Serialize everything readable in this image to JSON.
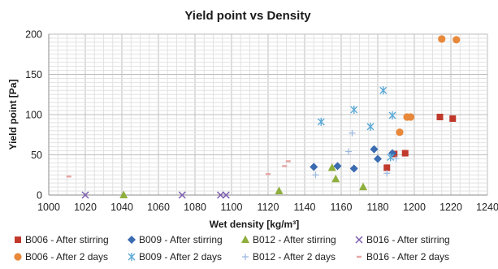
{
  "chart_data": {
    "type": "scatter",
    "title": "Yield point vs Density",
    "xlabel": "Wet density [kg/m³]",
    "ylabel": "Yield point [Pa]",
    "xlim": [
      1000,
      1240
    ],
    "ylim": [
      0,
      200
    ],
    "x_ticks": [
      "1000",
      "1020",
      "1040",
      "1060",
      "1080",
      "1100",
      "1120",
      "1140",
      "1160",
      "1180",
      "1200",
      "1220",
      "1240"
    ],
    "y_ticks": [
      "0",
      "50",
      "100",
      "150",
      "200"
    ],
    "grid": true,
    "legend_position": "bottom",
    "series": [
      {
        "name": "B006 - After stirring",
        "marker": "square",
        "color": "#c0392b",
        "points": [
          [
            1185,
            34
          ],
          [
            1189,
            51
          ],
          [
            1195,
            52
          ],
          [
            1214,
            97
          ],
          [
            1221,
            95
          ]
        ]
      },
      {
        "name": "B009 - After stirring",
        "marker": "diamond",
        "color": "#3b6bb0",
        "points": [
          [
            1145,
            35
          ],
          [
            1158,
            36
          ],
          [
            1167,
            33
          ],
          [
            1178,
            57
          ],
          [
            1180,
            45
          ],
          [
            1188,
            52
          ]
        ]
      },
      {
        "name": "B012 - After stirring",
        "marker": "triangle",
        "color": "#8faf3c",
        "points": [
          [
            1041,
            0
          ],
          [
            1126,
            5
          ],
          [
            1155,
            34
          ],
          [
            1157,
            20
          ],
          [
            1172,
            10
          ]
        ]
      },
      {
        "name": "B016 - After stirring",
        "marker": "x",
        "color": "#7c5cb0",
        "points": [
          [
            1020,
            0
          ],
          [
            1073,
            0
          ],
          [
            1094,
            0
          ],
          [
            1097,
            0
          ]
        ]
      },
      {
        "name": "B006 - After 2 days",
        "marker": "circle",
        "color": "#e8883a",
        "points": [
          [
            1192,
            78
          ],
          [
            1196,
            97
          ],
          [
            1198,
            97
          ],
          [
            1215,
            194
          ],
          [
            1223,
            193
          ]
        ]
      },
      {
        "name": "B009 - After 2 days",
        "marker": "star",
        "color": "#5aa9d6",
        "points": [
          [
            1149,
            91
          ],
          [
            1167,
            106
          ],
          [
            1176,
            85
          ],
          [
            1183,
            130
          ],
          [
            1188,
            99
          ],
          [
            1187,
            47
          ]
        ]
      },
      {
        "name": "B012 - After 2 days",
        "marker": "plus",
        "color": "#9ab8e0",
        "points": [
          [
            1146,
            25
          ],
          [
            1164,
            54
          ],
          [
            1166,
            77
          ],
          [
            1185,
            27
          ],
          [
            1190,
            45
          ]
        ]
      },
      {
        "name": "B016 - After 2 days",
        "marker": "dash",
        "color": "#e6a5a5",
        "points": [
          [
            1011,
            23
          ],
          [
            1120,
            26
          ],
          [
            1129,
            36
          ],
          [
            1131,
            42
          ]
        ]
      }
    ]
  }
}
